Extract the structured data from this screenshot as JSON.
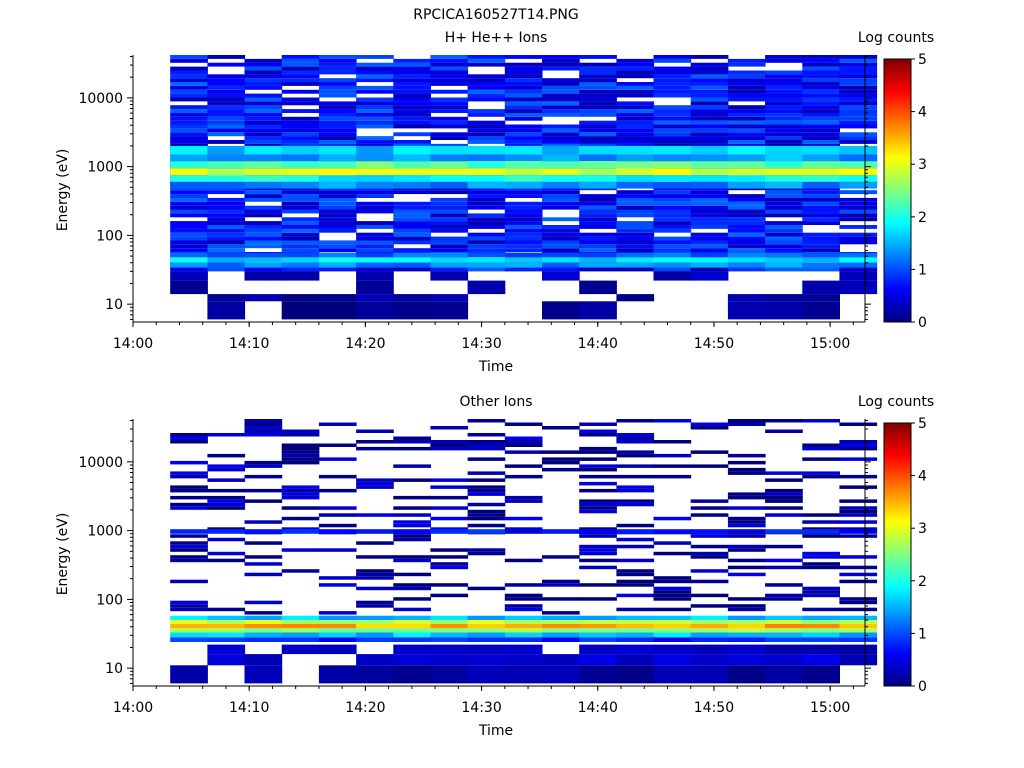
{
  "figure": {
    "title": "RPCICA160527T14.PNG"
  },
  "palette": {
    "jet": [
      "#00007f",
      "#0000ff",
      "#007fff",
      "#00ffff",
      "#7fff7f",
      "#ffff00",
      "#ff7f00",
      "#ff0000",
      "#7f0000"
    ],
    "axis": "#000000",
    "background": "#ffffff"
  },
  "chart_data": [
    {
      "type": "heatmap",
      "panel": "top",
      "title": "H+ He++ Ions",
      "xlabel": "Time",
      "ylabel": "Energy (eV)",
      "yscale": "log",
      "xlim": [
        "14:00",
        "15:03"
      ],
      "ylim": [
        5.5,
        42000
      ],
      "x_ticks": [
        "14:00",
        "14:10",
        "14:20",
        "14:30",
        "14:40",
        "14:50",
        "15:00"
      ],
      "y_ticks": [
        "10",
        "100",
        "1000",
        "10000"
      ],
      "colorbar": {
        "label": "Log counts",
        "range": [
          0,
          5
        ],
        "ticks": [
          "0",
          "1",
          "2",
          "3",
          "4",
          "5"
        ]
      },
      "time_bins": [
        "14:03:12",
        "14:06:24",
        "14:09:36",
        "14:12:48",
        "14:16:00",
        "14:19:12",
        "14:22:24",
        "14:25:36",
        "14:28:48",
        "14:32:00",
        "14:35:12",
        "14:38:24",
        "14:41:36",
        "14:44:48",
        "14:48:00",
        "14:51:12",
        "14:54:24",
        "14:57:36",
        "15:00:48"
      ],
      "bands": [
        {
          "e_low": 1500,
          "e_high": 2000,
          "level": 1.6
        },
        {
          "e_low": 1200,
          "e_high": 1500,
          "level": 1.4
        },
        {
          "e_low": 950,
          "e_high": 1200,
          "level": 2.3
        },
        {
          "e_low": 750,
          "e_high": 950,
          "level": 2.9
        },
        {
          "e_low": 600,
          "e_high": 750,
          "level": 1.9
        },
        {
          "e_low": 480,
          "e_high": 600,
          "level": 1.3
        },
        {
          "e_low": 48,
          "e_high": 56,
          "level": 1.1
        },
        {
          "e_low": 40,
          "e_high": 48,
          "level": 1.7
        },
        {
          "e_low": 34,
          "e_high": 40,
          "level": 1.3
        }
      ],
      "low_energy_cells": [
        {
          "e_low": 14,
          "e_high": 22,
          "bins": [
            0,
            5,
            8,
            11,
            17,
            18
          ],
          "level": 0.2
        },
        {
          "e_low": 22,
          "e_high": 30,
          "bins": [
            0,
            2,
            3,
            5,
            7,
            10,
            13,
            14,
            18
          ],
          "level": 0.3
        },
        {
          "e_low": 6,
          "e_high": 11,
          "bins": [
            1,
            3,
            4,
            5,
            6,
            7,
            10,
            11,
            15,
            16,
            17
          ],
          "level": 0.1
        },
        {
          "e_low": 11,
          "e_high": 14,
          "bins": [
            1,
            2,
            3,
            4,
            5,
            6,
            7,
            12,
            15,
            16,
            17
          ],
          "level": 0.15
        }
      ],
      "background_level": 0.7,
      "background_emin": 30,
      "background_emax": 42000
    },
    {
      "type": "heatmap",
      "panel": "bottom",
      "title": "Other Ions",
      "xlabel": "Time",
      "ylabel": "Energy (eV)",
      "yscale": "log",
      "xlim": [
        "14:00",
        "15:03"
      ],
      "ylim": [
        5.5,
        42000
      ],
      "x_ticks": [
        "14:00",
        "14:10",
        "14:20",
        "14:30",
        "14:40",
        "14:50",
        "15:00"
      ],
      "y_ticks": [
        "10",
        "100",
        "1000",
        "10000"
      ],
      "colorbar": {
        "label": "Log counts",
        "range": [
          0,
          5
        ],
        "ticks": [
          "0",
          "1",
          "2",
          "3",
          "4",
          "5"
        ]
      },
      "time_bins": [
        "14:03:12",
        "14:06:24",
        "14:09:36",
        "14:12:48",
        "14:16:00",
        "14:19:12",
        "14:22:24",
        "14:25:36",
        "14:28:48",
        "14:32:00",
        "14:35:12",
        "14:38:24",
        "14:41:36",
        "14:44:48",
        "14:48:00",
        "14:51:12",
        "14:54:24",
        "14:57:36",
        "15:00:48"
      ],
      "bands": [
        {
          "e_low": 900,
          "e_high": 1050,
          "level": 0.7
        },
        {
          "e_low": 50,
          "e_high": 58,
          "level": 1.6
        },
        {
          "e_low": 44,
          "e_high": 50,
          "level": 2.8
        },
        {
          "e_low": 38,
          "e_high": 44,
          "level": 3.5
        },
        {
          "e_low": 33,
          "e_high": 38,
          "level": 2.6
        },
        {
          "e_low": 28,
          "e_high": 33,
          "level": 1.6
        },
        {
          "e_low": 24,
          "e_high": 28,
          "level": 0.8
        }
      ],
      "low_energy_cells": [
        {
          "e_low": 16,
          "e_high": 22,
          "bins": [
            1,
            3,
            4,
            6,
            7,
            8,
            9,
            11,
            12,
            13,
            14,
            15,
            16,
            17,
            18
          ],
          "level": 0.3
        },
        {
          "e_low": 11,
          "e_high": 16,
          "bins": [
            1,
            2,
            5,
            6,
            7,
            8,
            9,
            10,
            11,
            12,
            13,
            14,
            15,
            16,
            17,
            18
          ],
          "level": 0.4
        },
        {
          "e_low": 6,
          "e_high": 11,
          "bins": [
            0,
            2,
            4,
            5,
            6,
            7,
            8,
            9,
            10,
            11,
            12,
            13,
            14,
            15,
            16,
            17
          ],
          "level": 0.15
        }
      ],
      "background_level": 0.1,
      "background_emin": 60,
      "background_emax": 42000,
      "background_density": 0.32
    }
  ]
}
